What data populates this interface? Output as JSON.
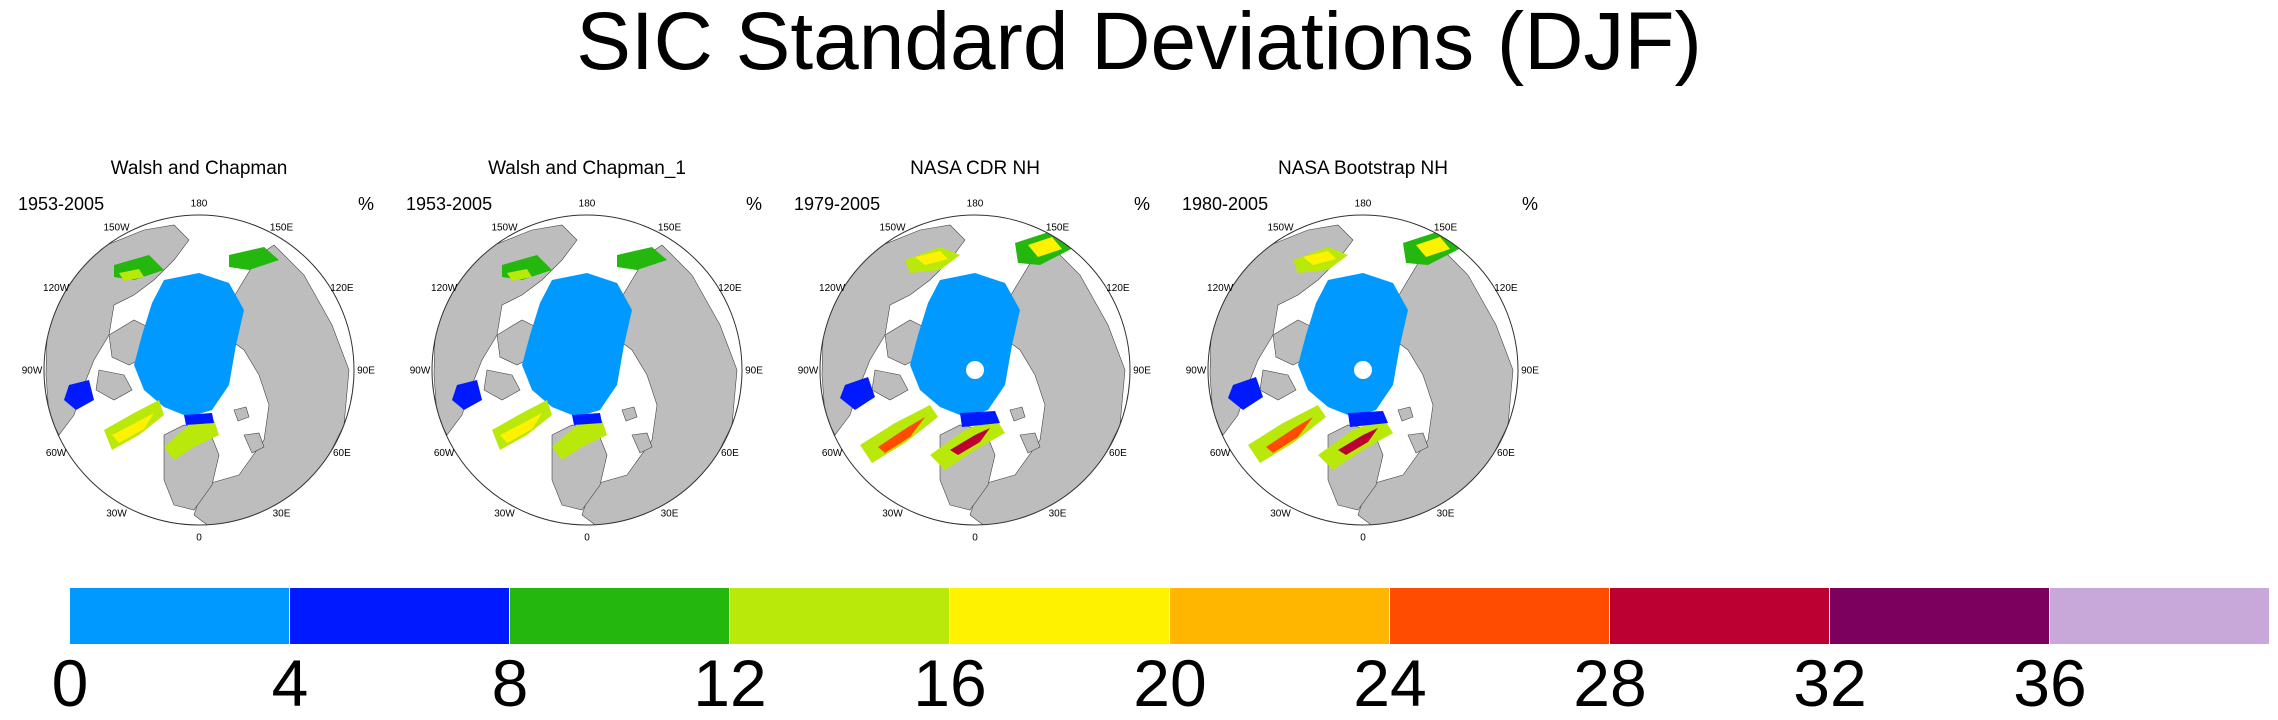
{
  "title": "SIC Standard Deviations (DJF)",
  "panels": [
    {
      "title": "Walsh and Chapman",
      "period": "1953-2005",
      "unit": "%",
      "pole_hole": false,
      "variant": "wc"
    },
    {
      "title": "Walsh and Chapman_1",
      "period": "1953-2005",
      "unit": "%",
      "pole_hole": false,
      "variant": "wc"
    },
    {
      "title": "NASA CDR NH",
      "period": "1979-2005",
      "unit": "%",
      "pole_hole": true,
      "variant": "nasa"
    },
    {
      "title": "NASA Bootstrap NH",
      "period": "1980-2005",
      "unit": "%",
      "pole_hole": true,
      "variant": "nasa"
    }
  ],
  "longitude_labels": [
    "180",
    "150E",
    "120E",
    "90E",
    "60E",
    "30E",
    "0",
    "30W",
    "60W",
    "90W",
    "120W",
    "150W"
  ],
  "colorbar": {
    "colors": [
      "#0099ff",
      "#0019ff",
      "#24b80f",
      "#b9e80b",
      "#fff200",
      "#ffb600",
      "#ff4c00",
      "#bc0032",
      "#7c005e",
      "#c8a8d8"
    ],
    "labels": [
      "0",
      "4",
      "8",
      "12",
      "16",
      "20",
      "24",
      "28",
      "32",
      "36"
    ]
  },
  "colors": {
    "land": "#bdbdbd",
    "ocean": "#ffffff",
    "ice": "#0099ff"
  }
}
